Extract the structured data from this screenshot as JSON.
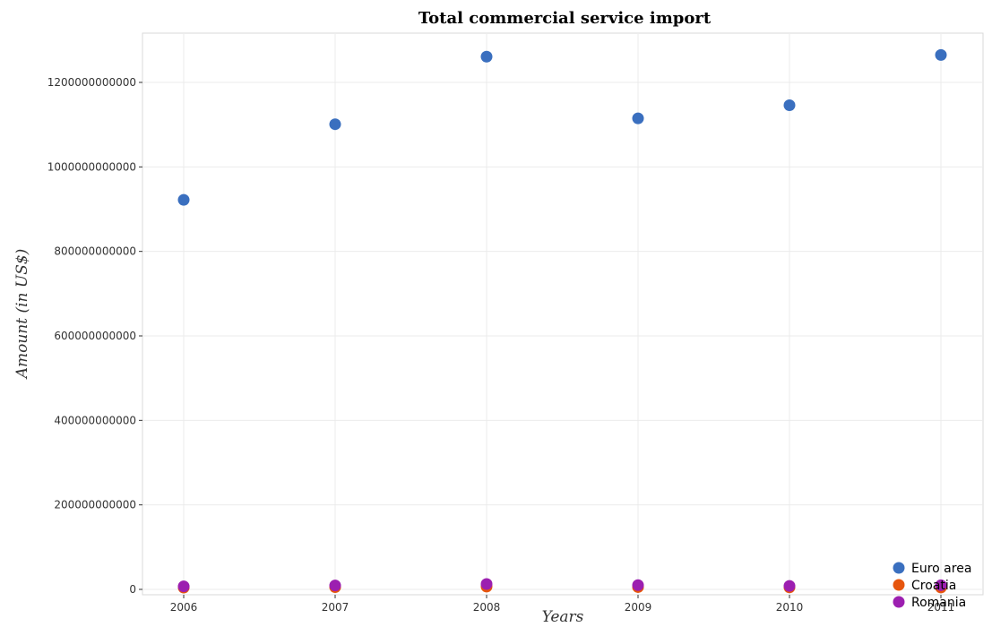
{
  "chart_data": {
    "type": "scatter",
    "title": "Total commercial service import",
    "xlabel": "Years",
    "ylabel": "Amount (in US$)",
    "x": [
      "2006",
      "2007",
      "2008",
      "2009",
      "2010",
      "2011"
    ],
    "ylim": [
      0,
      1300000000000
    ],
    "yticks": [
      0,
      200000000000,
      400000000000,
      600000000000,
      800000000000,
      1000000000000,
      1200000000000
    ],
    "ytick_labels": [
      "0",
      "200000000000",
      "400000000000",
      "600000000000",
      "800000000000",
      "1000000000000",
      "1200000000000"
    ],
    "grid": true,
    "legend_position": "bottom-right",
    "series": [
      {
        "name": "Euro area",
        "color": "#3a6fbf",
        "values": [
          922000000000,
          1101000000000,
          1261000000000,
          1115000000000,
          1146000000000,
          1265000000000
        ]
      },
      {
        "name": "Croatia",
        "color": "#e6550d",
        "values": [
          4200000000,
          5200000000,
          6600000000,
          5400000000,
          4700000000,
          4500000000
        ]
      },
      {
        "name": "Romania",
        "color": "#9c1fb0",
        "values": [
          7200000000,
          9300000000,
          12700000000,
          10000000000,
          8200000000,
          9900000000
        ]
      }
    ]
  }
}
